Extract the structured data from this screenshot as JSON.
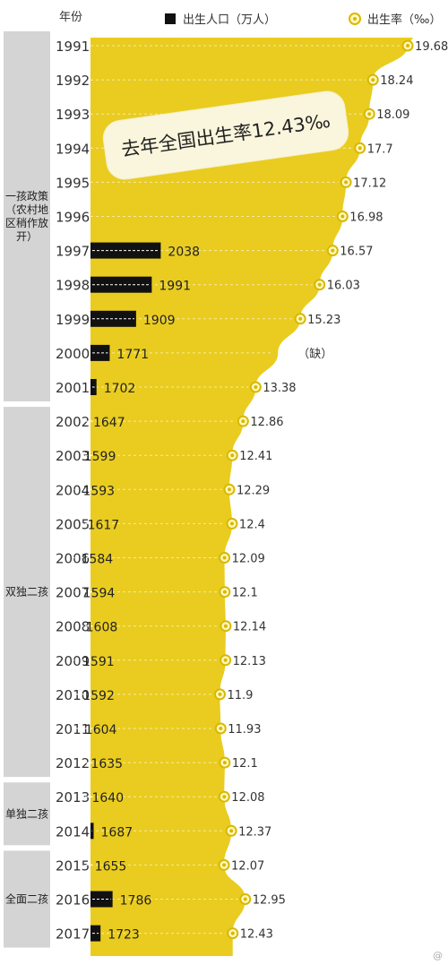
{
  "chart_data": {
    "type": "bar",
    "header": {
      "year_label": "年份",
      "births_legend": "出生人口（万人）",
      "rate_legend": "出生率（‰）"
    },
    "callout": "去年全国出生率12.43‰",
    "policies": [
      {
        "lines": [
          "一孩政策",
          "（农村地",
          "区稍作放",
          "开）"
        ],
        "from": "1991",
        "to": "2001"
      },
      {
        "lines": [
          "双独二孩"
        ],
        "from": "2002",
        "to": "2012"
      },
      {
        "lines": [
          "单独二孩"
        ],
        "from": "2013",
        "to": "2014"
      },
      {
        "lines": [
          "全面二孩"
        ],
        "from": "2015",
        "to": "2017"
      }
    ],
    "years": [
      "1991",
      "1992",
      "1993",
      "1994",
      "1995",
      "1996",
      "1997",
      "1998",
      "1999",
      "2000",
      "2001",
      "2002",
      "2003",
      "2004",
      "2005",
      "2006",
      "2007",
      "2008",
      "2009",
      "2010",
      "2011",
      "2012",
      "2013",
      "2014",
      "2015",
      "2016",
      "2017"
    ],
    "series": [
      {
        "name": "出生人口（万人）",
        "values": [
          null,
          null,
          null,
          null,
          null,
          null,
          2038,
          1991,
          1909,
          1771,
          1702,
          1647,
          1599,
          1593,
          1617,
          1584,
          1594,
          1608,
          1591,
          1592,
          1604,
          1635,
          1640,
          1687,
          1655,
          1786,
          1723
        ]
      },
      {
        "name": "出生率（‰）",
        "values": [
          19.68,
          18.24,
          18.09,
          17.7,
          17.12,
          16.98,
          16.57,
          16.03,
          15.23,
          null,
          13.38,
          12.86,
          12.41,
          12.29,
          12.4,
          12.09,
          12.1,
          12.14,
          12.13,
          11.9,
          11.93,
          12.1,
          12.08,
          12.37,
          12.07,
          12.95,
          12.43
        ]
      }
    ],
    "rate_labels": [
      "19.68",
      "18.24",
      "18.09",
      "17.7",
      "17.12",
      "16.98",
      "16.57",
      "16.03",
      "15.23",
      "（缺）",
      "13.38",
      "12.86",
      "12.41",
      "12.29",
      "12.4",
      "12.09",
      "12.1",
      "12.14",
      "12.13",
      "11.9",
      "11.93",
      "12.1",
      "12.08",
      "12.37",
      "12.07",
      "12.95",
      "12.43"
    ],
    "colors": {
      "area": "#e9cc1f",
      "bar": "#111111",
      "marker": "#d9b800",
      "policy_bg": "#d4d4d4"
    }
  }
}
